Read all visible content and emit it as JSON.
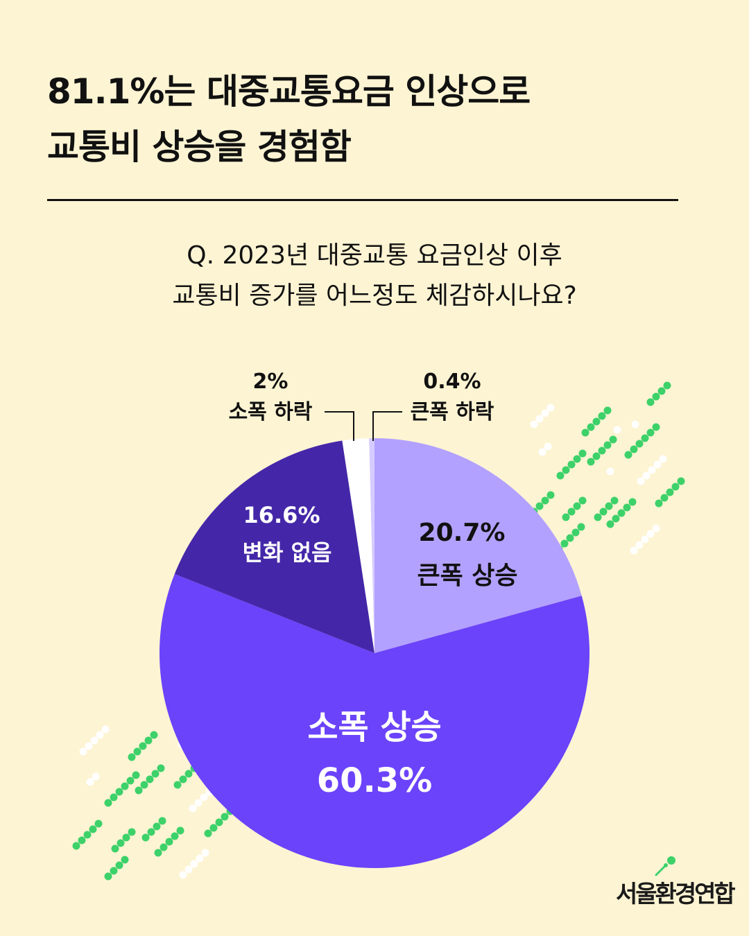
{
  "headline": {
    "line1": "81.1%는 대중교통요금 인상으로",
    "line2": "교통비 상승을 경험함"
  },
  "question": {
    "line1": "Q. 2023년 대중교통 요금인상 이후",
    "line2": "교통비 증가를 어느정도 체감하시나요?"
  },
  "chart_data": {
    "type": "pie",
    "slices": [
      {
        "label": "큰폭 상승",
        "value": 20.7,
        "value_text": "20.7%",
        "color": "#B3A1FF"
      },
      {
        "label": "소폭 상승",
        "value": 60.3,
        "value_text": "60.3%",
        "color": "#6B43FA"
      },
      {
        "label": "변화 없음",
        "value": 16.6,
        "value_text": "16.6%",
        "color": "#4427A8"
      },
      {
        "label": "소폭 하락",
        "value": 2,
        "value_text": "2%",
        "color": "#FFFFFF"
      },
      {
        "label": "큰폭 하락",
        "value": 0.4,
        "value_text": "0.4%",
        "color": "#D6CCFF"
      }
    ]
  },
  "colors": {
    "background": "#FDF4D3",
    "text": "#111111",
    "accent_green": "#3DD16A"
  },
  "logo": {
    "text": "서울환경연합"
  }
}
